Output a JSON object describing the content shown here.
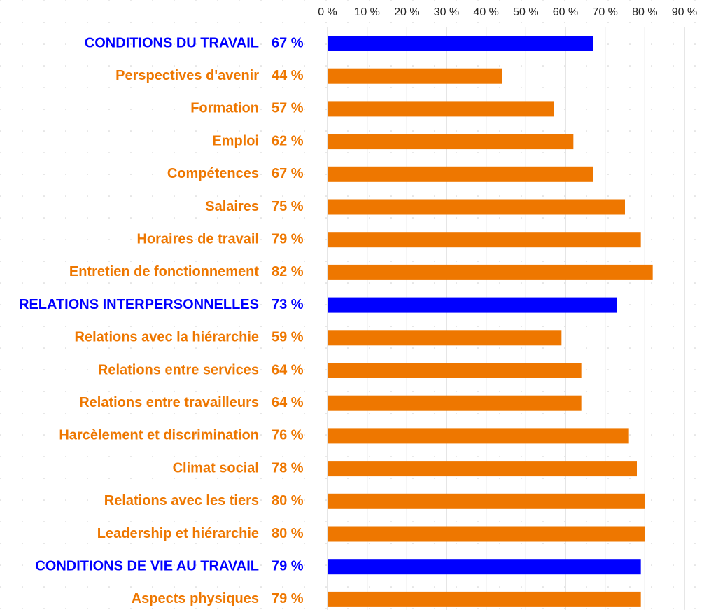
{
  "chart_data": {
    "type": "barh",
    "categories": [
      "CONDITIONS DU TRAVAIL",
      "Perspectives d'avenir",
      "Formation",
      "Emploi",
      "Compétences",
      "Salaires",
      "Horaires de travail",
      "Entretien de fonctionnement",
      "RELATIONS INTERPERSONNELLES",
      "Relations avec la hiérarchie",
      "Relations entre services",
      "Relations entre travailleurs",
      "Harcèlement et discrimination",
      "Climat social",
      "Relations avec les tiers",
      "Leadership et hiérarchie",
      "CONDITIONS DE VIE AU TRAVAIL",
      "Aspects physiques"
    ],
    "values": [
      67,
      44,
      57,
      62,
      67,
      75,
      79,
      82,
      73,
      59,
      64,
      64,
      76,
      78,
      80,
      80,
      79,
      79
    ],
    "value_labels": [
      "67 %",
      "44 %",
      "57 %",
      "62 %",
      "67 %",
      "75 %",
      "79 %",
      "82 %",
      "73 %",
      "59 %",
      "64 %",
      "64 %",
      "76 %",
      "78 %",
      "80 %",
      "80 %",
      "79 %",
      "79 %"
    ],
    "colors": [
      "#0000ff",
      "#ee7700",
      "#ee7700",
      "#ee7700",
      "#ee7700",
      "#ee7700",
      "#ee7700",
      "#ee7700",
      "#0000ff",
      "#ee7700",
      "#ee7700",
      "#ee7700",
      "#ee7700",
      "#ee7700",
      "#ee7700",
      "#ee7700",
      "#0000ff",
      "#ee7700"
    ],
    "xlim": [
      0,
      90
    ],
    "xticks": [
      {
        "value": 0,
        "label": "0 %"
      },
      {
        "value": 10,
        "label": "10 %"
      },
      {
        "value": 20,
        "label": "20 %"
      },
      {
        "value": 30,
        "label": "30 %"
      },
      {
        "value": 40,
        "label": "40 %"
      },
      {
        "value": 50,
        "label": "50 %"
      },
      {
        "value": 60,
        "label": "60 %"
      },
      {
        "value": 70,
        "label": "70 %"
      },
      {
        "value": 80,
        "label": "80 %"
      },
      {
        "value": 90,
        "label": "90 %"
      }
    ],
    "grid": true
  }
}
